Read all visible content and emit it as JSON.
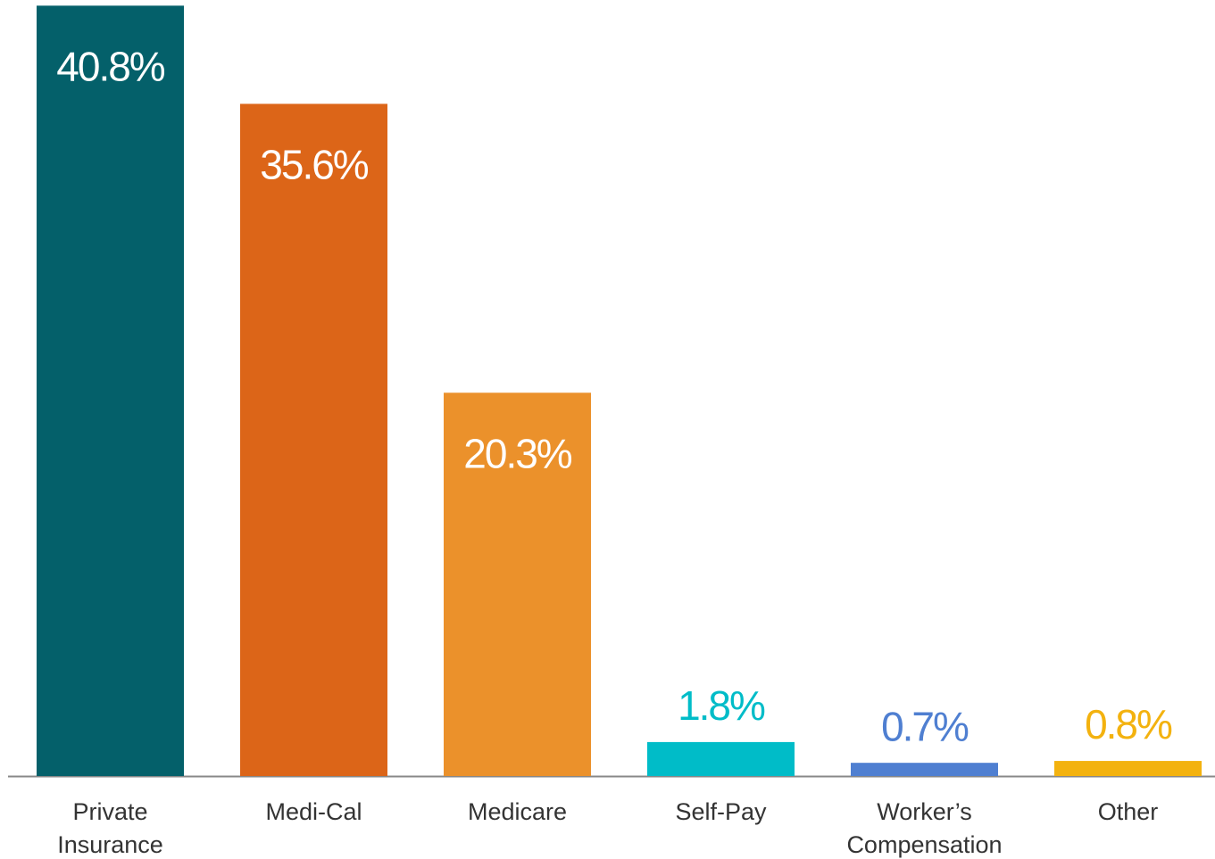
{
  "chart_data": {
    "type": "bar",
    "categories": [
      "Private Insurance",
      "Medi-Cal",
      "Medicare",
      "Self-Pay",
      "Worker’s Compensation",
      "Other"
    ],
    "values": [
      40.8,
      35.6,
      20.3,
      1.8,
      0.7,
      0.8
    ],
    "value_labels": [
      "40.8%",
      "35.6%",
      "20.3%",
      "1.8%",
      "0.7%",
      "0.8%"
    ],
    "colors": [
      "#04606a",
      "#dc6518",
      "#eb912b",
      "#00bcc8",
      "#4f7fd1",
      "#f3b20f"
    ],
    "ylim": [
      0,
      41.1
    ]
  }
}
